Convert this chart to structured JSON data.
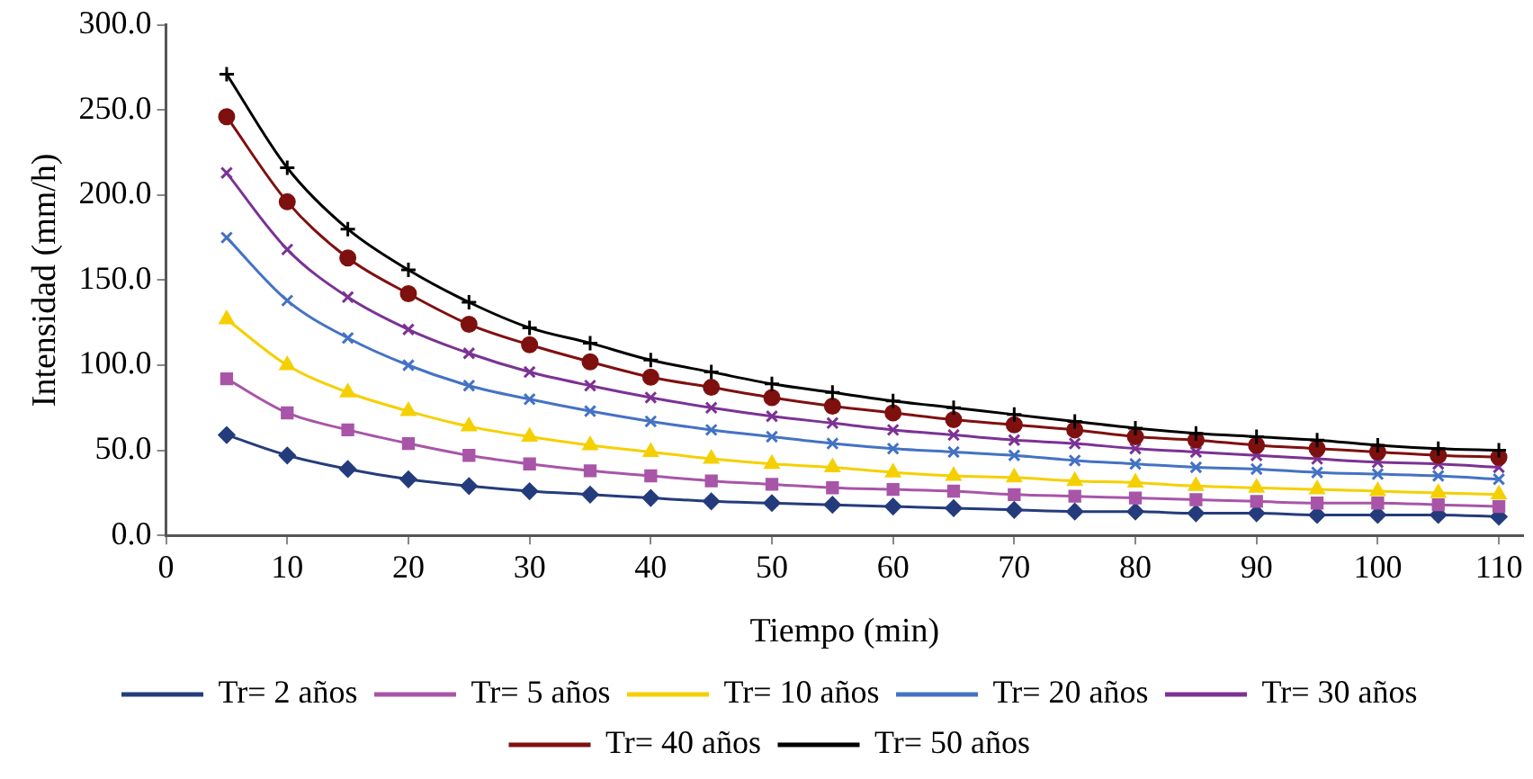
{
  "chart_data": {
    "type": "line",
    "xlabel": "Tiempo (min)",
    "ylabel": "Intensidad (mm/h)",
    "x": [
      5,
      10,
      15,
      20,
      25,
      30,
      35,
      40,
      45,
      50,
      55,
      60,
      65,
      70,
      75,
      80,
      85,
      90,
      95,
      100,
      105,
      110
    ],
    "xlim": [
      0,
      112
    ],
    "xticks": [
      0,
      10,
      20,
      30,
      40,
      50,
      60,
      70,
      80,
      90,
      100,
      110
    ],
    "ylim": [
      0,
      300
    ],
    "yticks": [
      {
        "value": 0,
        "label": "0.0"
      },
      {
        "value": 50,
        "label": "50.0"
      },
      {
        "value": 100,
        "label": "100.0"
      },
      {
        "value": 150,
        "label": "150.0"
      },
      {
        "value": 200,
        "label": "200.0"
      },
      {
        "value": 250,
        "label": "250.0"
      },
      {
        "value": 300,
        "label": "300.0"
      }
    ],
    "grid": false,
    "legend": "bottom",
    "line_style": "solid",
    "series": [
      {
        "name": "Tr= 2 años",
        "color": "#243c7c",
        "marker": "diamond",
        "values": [
          59,
          47,
          39,
          33,
          29,
          26,
          24,
          22,
          20,
          19,
          18,
          17,
          16,
          15,
          14,
          14,
          13,
          13,
          12,
          12,
          12,
          11
        ]
      },
      {
        "name": "Tr= 5 años",
        "color": "#a855a8",
        "marker": "square",
        "values": [
          92,
          72,
          62,
          54,
          47,
          42,
          38,
          35,
          32,
          30,
          28,
          27,
          26,
          24,
          23,
          22,
          21,
          20,
          19,
          19,
          18,
          17
        ]
      },
      {
        "name": "Tr= 10 años",
        "color": "#f5d000",
        "marker": "triangle",
        "values": [
          127,
          100,
          84,
          73,
          64,
          58,
          53,
          49,
          45,
          42,
          40,
          37,
          35,
          34,
          32,
          31,
          29,
          28,
          27,
          26,
          25,
          24
        ]
      },
      {
        "name": "Tr= 20 años",
        "color": "#4472c4",
        "marker": "x",
        "values": [
          175,
          138,
          116,
          100,
          88,
          80,
          73,
          67,
          62,
          58,
          54,
          51,
          49,
          47,
          44,
          42,
          40,
          39,
          37,
          36,
          35,
          33
        ]
      },
      {
        "name": "Tr= 30 años",
        "color": "#7b3294",
        "marker": "x",
        "values": [
          213,
          168,
          140,
          121,
          107,
          96,
          88,
          81,
          75,
          70,
          66,
          62,
          59,
          56,
          54,
          51,
          49,
          47,
          45,
          43,
          42,
          40
        ]
      },
      {
        "name": "Tr= 40 años",
        "color": "#7f1010",
        "marker": "circle",
        "values": [
          246,
          196,
          163,
          142,
          124,
          112,
          102,
          93,
          87,
          81,
          76,
          72,
          68,
          65,
          62,
          58,
          56,
          53,
          51,
          49,
          47,
          46
        ]
      },
      {
        "name": "Tr= 50 años",
        "color": "#000000",
        "marker": "cross",
        "values": [
          271,
          216,
          180,
          156,
          137,
          122,
          113,
          103,
          96,
          89,
          84,
          79,
          75,
          71,
          67,
          63,
          60,
          58,
          56,
          53,
          51,
          50
        ]
      }
    ]
  }
}
